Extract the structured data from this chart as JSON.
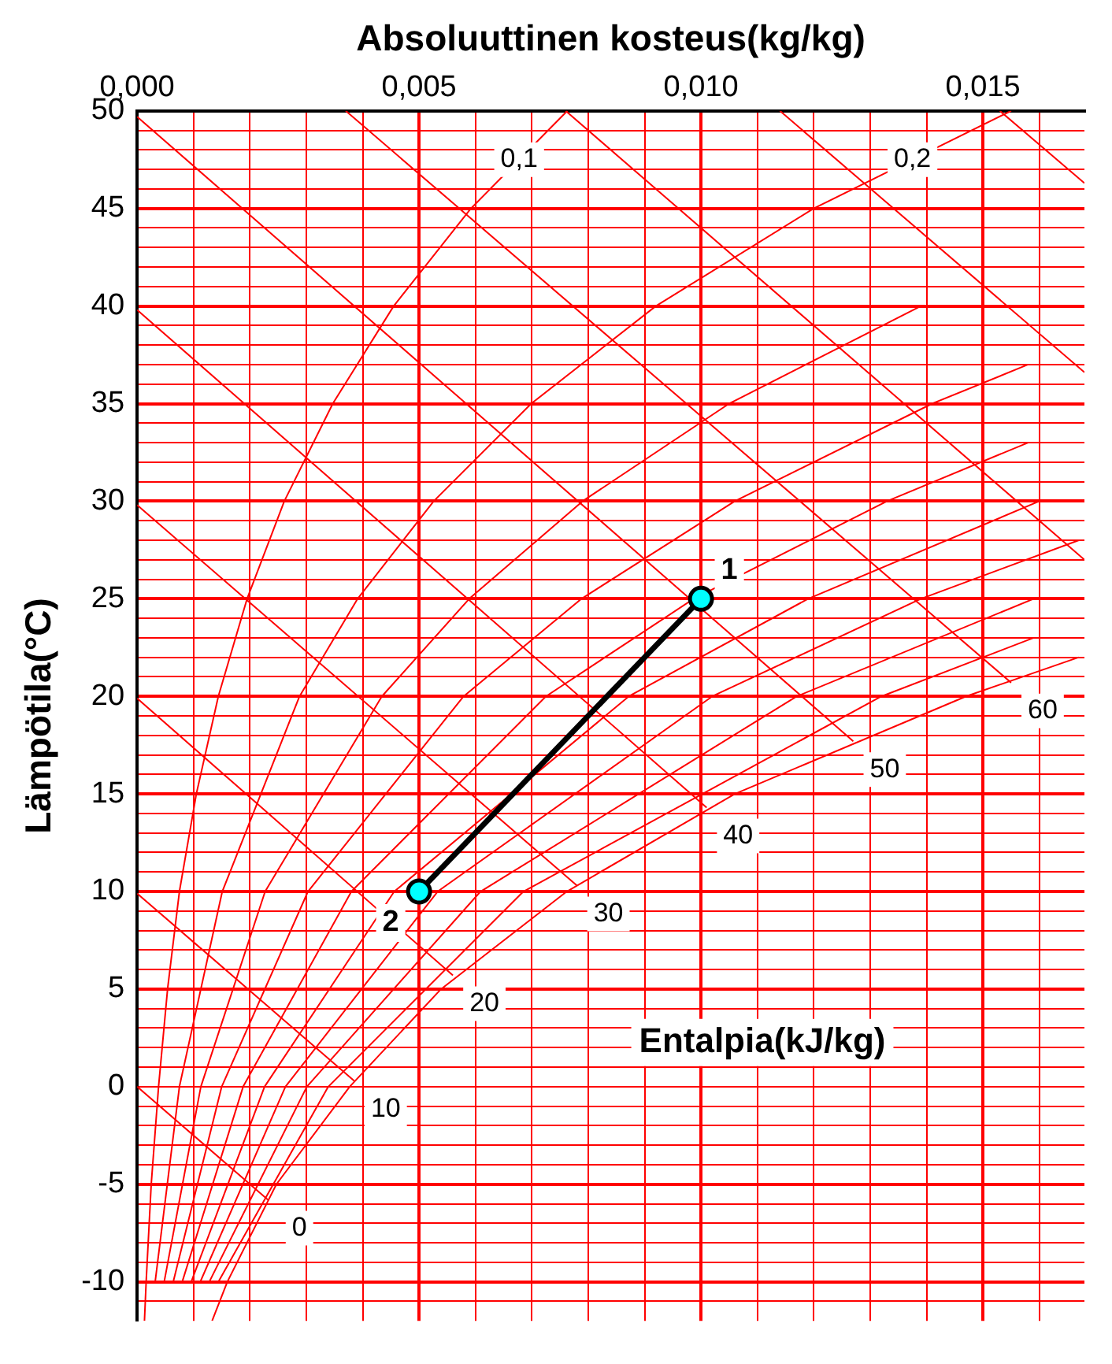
{
  "chart_data": {
    "type": "line",
    "xlabel": "Absoluuttinen kosteus(kg/kg)",
    "ylabel": "Lämpötila(°C)",
    "xlim": [
      0,
      0.0168
    ],
    "ylim": [
      -12,
      50
    ],
    "xticks": [
      {
        "value": 0,
        "label": "0,000"
      },
      {
        "value": 0.001,
        "label": null
      },
      {
        "value": 0.002,
        "label": null
      },
      {
        "value": 0.003,
        "label": null
      },
      {
        "value": 0.004,
        "label": null
      },
      {
        "value": 0.005,
        "label": "0,005"
      },
      {
        "value": 0.006,
        "label": null
      },
      {
        "value": 0.007,
        "label": null
      },
      {
        "value": 0.008,
        "label": null
      },
      {
        "value": 0.009,
        "label": null
      },
      {
        "value": 0.01,
        "label": "0,010"
      },
      {
        "value": 0.011,
        "label": null
      },
      {
        "value": 0.012,
        "label": null
      },
      {
        "value": 0.013,
        "label": null
      },
      {
        "value": 0.014,
        "label": null
      },
      {
        "value": 0.015,
        "label": "0,015"
      },
      {
        "value": 0.016,
        "label": null
      }
    ],
    "yticks": [
      {
        "value": -11,
        "label": null
      },
      -10,
      {
        "value": -9,
        "label": null
      },
      {
        "value": -8,
        "label": null
      },
      {
        "value": -7,
        "label": null
      },
      {
        "value": -6,
        "label": null
      },
      -5,
      {
        "value": -4,
        "label": null
      },
      {
        "value": -3,
        "label": null
      },
      {
        "value": -2,
        "label": null
      },
      {
        "value": -1,
        "label": null
      },
      0,
      {
        "value": 1,
        "label": null
      },
      {
        "value": 2,
        "label": null
      },
      {
        "value": 3,
        "label": null
      },
      {
        "value": 4,
        "label": null
      },
      5,
      {
        "value": 6,
        "label": null
      },
      {
        "value": 7,
        "label": null
      },
      {
        "value": 8,
        "label": null
      },
      {
        "value": 9,
        "label": null
      },
      10,
      {
        "value": 11,
        "label": null
      },
      {
        "value": 12,
        "label": null
      },
      {
        "value": 13,
        "label": null
      },
      {
        "value": 14,
        "label": null
      },
      15,
      {
        "value": 16,
        "label": null
      },
      {
        "value": 17,
        "label": null
      },
      {
        "value": 18,
        "label": null
      },
      {
        "value": 19,
        "label": null
      },
      20,
      {
        "value": 21,
        "label": null
      },
      {
        "value": 22,
        "label": null
      },
      {
        "value": 23,
        "label": null
      },
      {
        "value": 24,
        "label": null
      },
      25,
      {
        "value": 26,
        "label": null
      },
      {
        "value": 27,
        "label": null
      },
      {
        "value": 28,
        "label": null
      },
      {
        "value": 29,
        "label": null
      },
      30,
      {
        "value": 31,
        "label": null
      },
      {
        "value": 32,
        "label": null
      },
      {
        "value": 33,
        "label": null
      },
      {
        "value": 34,
        "label": null
      },
      35,
      {
        "value": 36,
        "label": null
      },
      {
        "value": 37,
        "label": null
      },
      {
        "value": 38,
        "label": null
      },
      {
        "value": 39,
        "label": null
      },
      40,
      {
        "value": 41,
        "label": null
      },
      {
        "value": 42,
        "label": null
      },
      {
        "value": 43,
        "label": null
      },
      {
        "value": 44,
        "label": null
      },
      45,
      {
        "value": 46,
        "label": null
      },
      {
        "value": 47,
        "label": null
      },
      {
        "value": 48,
        "label": null
      },
      {
        "value": 49,
        "label": null
      },
      50
    ],
    "grid": true,
    "legend": false,
    "series": [
      {
        "color": "#ff0000",
        "x": [
          0.00133,
          0.0016,
          0.00247,
          0.00377,
          0.00539,
          0.00762,
          0.0106,
          0.0147,
          0.0167
        ],
        "values": [
          -12,
          -10,
          -5,
          0,
          5,
          10,
          15,
          20,
          22
        ]
      },
      {
        "name": "0,1",
        "color": "#ff0000",
        "x": [
          0.00013,
          0.00016,
          0.00025,
          0.00038,
          0.00054,
          0.00075,
          0.00105,
          0.00144,
          0.00195,
          0.00261,
          0.00347,
          0.00455,
          0.00592,
          0.00763
        ],
        "values": [
          -12,
          -10,
          -5,
          0,
          5,
          10,
          15,
          20,
          25,
          30,
          35,
          40,
          45,
          50
        ]
      },
      {
        "name": "0,2",
        "color": "#ff0000",
        "x": [
          0.00032,
          0.00075,
          0.00151,
          0.00288,
          0.00391,
          0.00526,
          0.00699,
          0.0092,
          0.012,
          0.0155
        ],
        "values": [
          -10,
          0,
          10,
          20,
          25,
          30,
          35,
          40,
          45,
          50
        ]
      },
      {
        "color": "#ff0000",
        "x": [
          0.00048,
          0.00113,
          0.00227,
          0.00434,
          0.00589,
          0.0079,
          0.0105,
          0.0139
        ],
        "values": [
          -10,
          0,
          10,
          20,
          25,
          30,
          35,
          40
        ]
      },
      {
        "color": "#ff0000",
        "x": [
          0.00064,
          0.0015,
          0.00303,
          0.00579,
          0.00788,
          0.0106,
          0.0141,
          0.0158
        ],
        "values": [
          -10,
          0,
          10,
          20,
          25,
          30,
          35,
          37
        ]
      },
      {
        "color": "#ff0000",
        "x": [
          0.0008,
          0.00188,
          0.0038,
          0.00725,
          0.00987,
          0.0133,
          0.0158
        ],
        "values": [
          -10,
          0,
          10,
          20,
          25,
          30,
          33
        ]
      },
      {
        "color": "#ff0000",
        "x": [
          0.00096,
          0.00226,
          0.00456,
          0.00872,
          0.0119,
          0.016
        ],
        "values": [
          -10,
          0,
          10,
          20,
          25,
          30
        ]
      },
      {
        "color": "#ff0000",
        "x": [
          0.00112,
          0.00263,
          0.00533,
          0.0102,
          0.0139,
          0.0167
        ],
        "values": [
          -10,
          0,
          10,
          20,
          25,
          28
        ]
      },
      {
        "color": "#ff0000",
        "x": [
          0.00128,
          0.00301,
          0.00609,
          0.0117,
          0.0159
        ],
        "values": [
          -10,
          0,
          10,
          20,
          25
        ]
      },
      {
        "color": "#ff0000",
        "x": [
          0.00144,
          0.00339,
          0.00685,
          0.0132,
          0.0159
        ],
        "values": [
          -10,
          0,
          10,
          20,
          23
        ]
      },
      {
        "name": "0",
        "color": "#ff0000",
        "x": [
          0,
          0.00232
        ],
        "values": [
          0,
          -5.8
        ]
      },
      {
        "name": "10",
        "color": "#ff0000",
        "x": [
          0,
          0.00385
        ],
        "values": [
          9.9,
          0.3
        ]
      },
      {
        "name": "20",
        "color": "#ff0000",
        "x": [
          0,
          0.0056
        ],
        "values": [
          19.9,
          5.7
        ]
      },
      {
        "name": "30",
        "color": "#ff0000",
        "x": [
          0,
          0.0078
        ],
        "values": [
          29.8,
          10.3
        ]
      },
      {
        "name": "40",
        "color": "#ff0000",
        "x": [
          0,
          0.0101
        ],
        "values": [
          39.8,
          14.3
        ]
      },
      {
        "name": "50",
        "color": "#ff0000",
        "x": [
          0,
          0.0127
        ],
        "values": [
          49.7,
          17.7
        ]
      },
      {
        "name": "60",
        "color": "#ff0000",
        "x": [
          0.0037,
          0.0155
        ],
        "values": [
          50,
          20.7
        ]
      },
      {
        "color": "#ff0000",
        "x": [
          0.0076,
          0.0168
        ],
        "values": [
          50,
          27
        ]
      },
      {
        "color": "#ff0000",
        "x": [
          0.0114,
          0.0168
        ],
        "values": [
          50,
          36.6
        ]
      },
      {
        "color": "#ff0000",
        "x": [
          0.0153,
          0.0168
        ],
        "values": [
          50,
          46.3
        ]
      },
      {
        "color": "#000000",
        "colors": [
          "#00ffff",
          "#00ffff"
        ],
        "marker": "circle",
        "x": [
          0.01,
          0.005
        ],
        "values": [
          25,
          10
        ]
      }
    ],
    "annotations": [
      {
        "text": "1",
        "x": 0.01,
        "y": 25
      },
      {
        "text": "2",
        "x": 0.005,
        "y": 10
      },
      "Entalpia(kJ/kg)"
    ]
  }
}
